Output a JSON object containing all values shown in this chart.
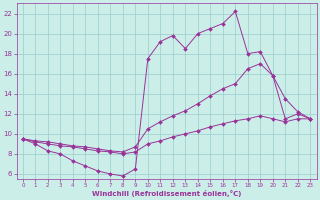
{
  "background_color": "#cceee8",
  "grid_color": "#99cccc",
  "line_color": "#993399",
  "xlabel": "Windchill (Refroidissement éolien,°C)",
  "xlim": [
    -0.5,
    23.5
  ],
  "ylim": [
    5.5,
    23
  ],
  "yticks": [
    6,
    8,
    10,
    12,
    14,
    16,
    18,
    20,
    22
  ],
  "xticks": [
    0,
    1,
    2,
    3,
    4,
    5,
    6,
    7,
    8,
    9,
    10,
    11,
    12,
    13,
    14,
    15,
    16,
    17,
    18,
    19,
    20,
    21,
    22,
    23
  ],
  "curve1_x": [
    0,
    1,
    2,
    3,
    4,
    5,
    6,
    7,
    8,
    9,
    10,
    11,
    12,
    13,
    14,
    15,
    16,
    17,
    18,
    19,
    20,
    21,
    22,
    23
  ],
  "curve1_y": [
    9.5,
    9.0,
    8.3,
    8.0,
    7.3,
    6.8,
    6.3,
    6.0,
    5.8,
    6.5,
    17.5,
    19.2,
    19.8,
    18.5,
    20.0,
    20.5,
    21.0,
    22.2,
    18.0,
    18.2,
    15.8,
    13.5,
    12.2,
    11.5
  ],
  "curve2_x": [
    0,
    1,
    2,
    3,
    4,
    5,
    6,
    7,
    8,
    9,
    10,
    11,
    12,
    13,
    14,
    15,
    16,
    17,
    18,
    19,
    20,
    21,
    22,
    23
  ],
  "curve2_y": [
    9.5,
    9.3,
    9.2,
    9.0,
    8.8,
    8.7,
    8.5,
    8.3,
    8.2,
    8.7,
    10.5,
    11.2,
    11.8,
    12.3,
    13.0,
    13.8,
    14.5,
    15.0,
    16.5,
    17.0,
    15.8,
    11.5,
    12.0,
    11.5
  ],
  "curve3_x": [
    0,
    1,
    2,
    3,
    4,
    5,
    6,
    7,
    8,
    9,
    10,
    11,
    12,
    13,
    14,
    15,
    16,
    17,
    18,
    19,
    20,
    21,
    22,
    23
  ],
  "curve3_y": [
    9.5,
    9.2,
    9.0,
    8.8,
    8.7,
    8.5,
    8.3,
    8.2,
    8.0,
    8.2,
    9.0,
    9.3,
    9.7,
    10.0,
    10.3,
    10.7,
    11.0,
    11.3,
    11.5,
    11.8,
    11.5,
    11.2,
    11.5,
    11.5
  ]
}
